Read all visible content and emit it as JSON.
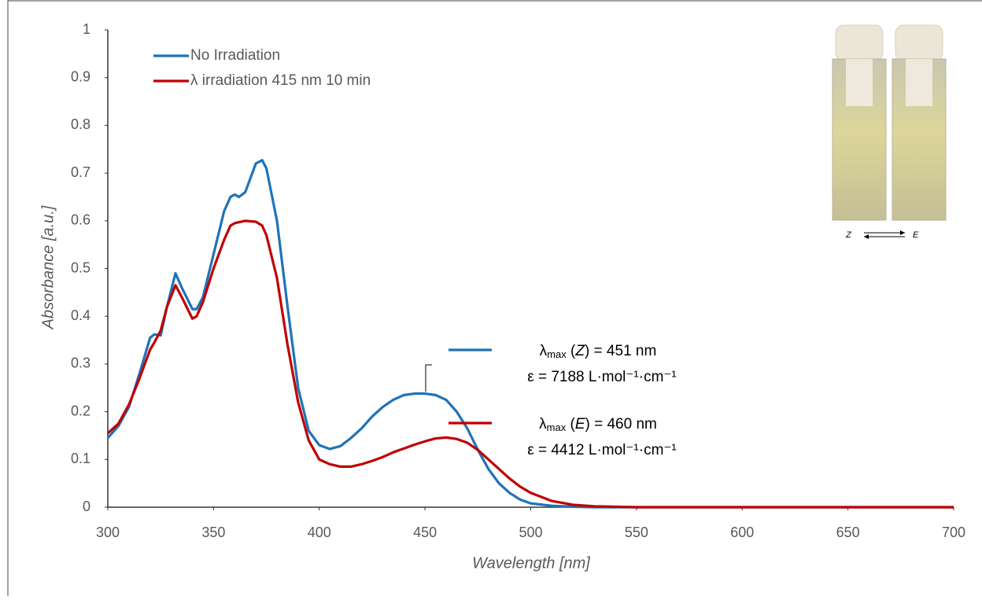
{
  "chart_data": {
    "type": "line",
    "x": [
      300,
      305,
      310,
      315,
      320,
      322,
      325,
      328,
      332,
      335,
      340,
      342,
      345,
      350,
      355,
      358,
      360,
      362,
      365,
      370,
      373,
      375,
      380,
      385,
      390,
      395,
      400,
      405,
      410,
      415,
      420,
      425,
      430,
      435,
      440,
      445,
      450,
      455,
      460,
      465,
      470,
      475,
      480,
      485,
      490,
      495,
      500,
      510,
      520,
      530,
      550,
      600,
      650,
      700
    ],
    "series": [
      {
        "name": "No Irradiation",
        "color": "#1f73b7",
        "values": [
          0.145,
          0.17,
          0.21,
          0.28,
          0.355,
          0.362,
          0.36,
          0.42,
          0.49,
          0.46,
          0.415,
          0.415,
          0.44,
          0.53,
          0.62,
          0.65,
          0.655,
          0.65,
          0.66,
          0.72,
          0.727,
          0.71,
          0.6,
          0.42,
          0.25,
          0.16,
          0.13,
          0.122,
          0.128,
          0.145,
          0.165,
          0.19,
          0.21,
          0.225,
          0.235,
          0.238,
          0.238,
          0.235,
          0.225,
          0.2,
          0.165,
          0.12,
          0.08,
          0.05,
          0.03,
          0.016,
          0.008,
          0.003,
          0.001,
          0,
          0,
          0,
          0,
          0
        ]
      },
      {
        "name": "λ irradiation 415 nm 10 min",
        "color": "#c00000",
        "values": [
          0.155,
          0.175,
          0.215,
          0.27,
          0.33,
          0.345,
          0.37,
          0.42,
          0.465,
          0.44,
          0.395,
          0.4,
          0.43,
          0.5,
          0.56,
          0.59,
          0.595,
          0.597,
          0.6,
          0.598,
          0.59,
          0.57,
          0.48,
          0.34,
          0.22,
          0.14,
          0.1,
          0.09,
          0.085,
          0.085,
          0.09,
          0.097,
          0.105,
          0.115,
          0.123,
          0.131,
          0.138,
          0.144,
          0.146,
          0.143,
          0.135,
          0.12,
          0.1,
          0.08,
          0.06,
          0.043,
          0.03,
          0.013,
          0.005,
          0.002,
          0,
          0,
          0,
          0
        ]
      }
    ],
    "xlabel": "Wavelength [nm]",
    "ylabel": "Absorbance [a.u.]",
    "xlim": [
      300,
      700
    ],
    "xticks": [
      300,
      350,
      400,
      450,
      500,
      550,
      600,
      650,
      700
    ],
    "ylim": [
      0,
      1
    ],
    "yticks": [
      0,
      0.1,
      0.2,
      0.3,
      0.4,
      0.5,
      0.6,
      0.7,
      0.8,
      0.9,
      1
    ],
    "grid": false,
    "legend": "upper left",
    "annotations": [
      {
        "color": "#1f73b7",
        "label": [
          "λ",
          "max",
          " (",
          "Z",
          ") = 451 nm"
        ],
        "epsilon": "ε = 7188 L·mol⁻¹·cm⁻¹"
      },
      {
        "color": "#c00000",
        "label": [
          "λ",
          "max",
          " (",
          "E",
          ") = 460 nm"
        ],
        "epsilon": "ε = 4412 L·mol⁻¹·cm⁻¹"
      }
    ],
    "inset_labels": [
      "Z",
      "E"
    ]
  }
}
